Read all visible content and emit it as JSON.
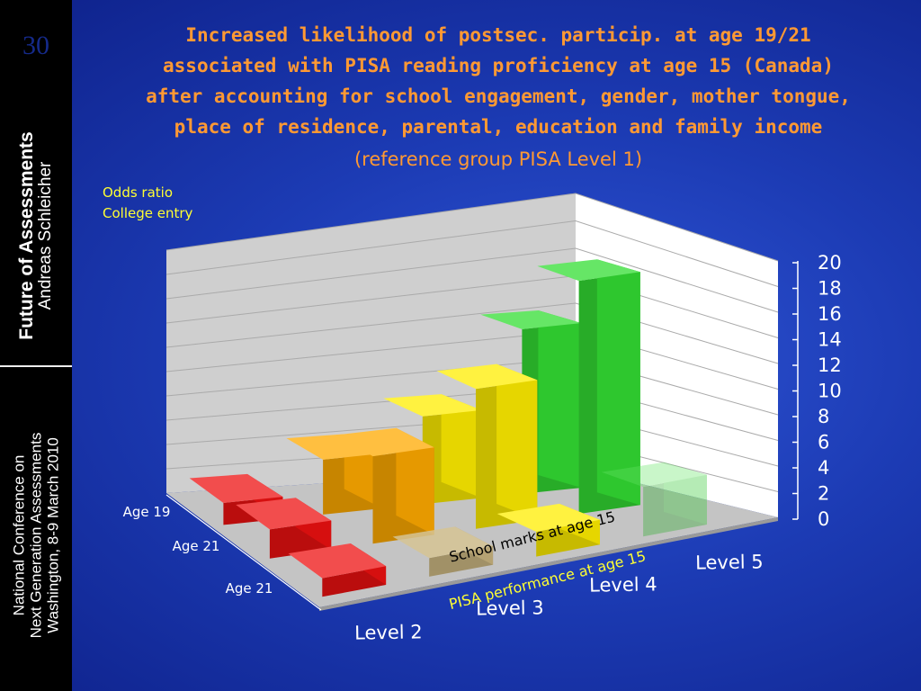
{
  "slide": {
    "number": "30"
  },
  "sidebar": {
    "title": "Future of Assessments",
    "author": "Andreas Schleicher",
    "conference": [
      "National Conference on",
      "Next Generation Assessments",
      "Washington, 8-9 March 2010"
    ]
  },
  "heading": {
    "lines": [
      "Increased likelihood of postsec. particip. at age 19/21",
      "associated with PISA reading proficiency at age 15 (Canada)",
      "after accounting for school engagement, gender, mother tongue,",
      "place of residence, parental, education and family income"
    ],
    "sub": "(reference group PISA Level 1)"
  },
  "colors": {
    "level2": "#ee1111",
    "level3": "#ffaa00",
    "level4": "#ffee00",
    "level5": "#33dd33",
    "school": "#c8b070",
    "title": "#ff9933",
    "axis_label": "#ffff33"
  },
  "chart_data": {
    "type": "bar",
    "title": "Increased likelihood of postsec. particip. at age 19/21 associated with PISA reading proficiency at age 15 (Canada)",
    "ylabel": [
      "Odds ratio",
      "College entry"
    ],
    "xlabel": "PISA performance at age 15",
    "categories": [
      "Level 2",
      "Level 3",
      "Level 4",
      "Level 5"
    ],
    "ylim": [
      0,
      20
    ],
    "yticks": [
      "0",
      "2",
      "4",
      "6",
      "8",
      "10",
      "12",
      "14",
      "16",
      "18",
      "20"
    ],
    "series": [
      {
        "name": "Age 19",
        "values": [
          2,
          5,
          8,
          15
        ]
      },
      {
        "name": "Age 21",
        "values": [
          2.5,
          7.5,
          12,
          20
        ]
      },
      {
        "name": "Age 21",
        "values": [
          1.5,
          1.5,
          2,
          4
        ]
      }
    ],
    "annotation": "School marks at age 15"
  }
}
